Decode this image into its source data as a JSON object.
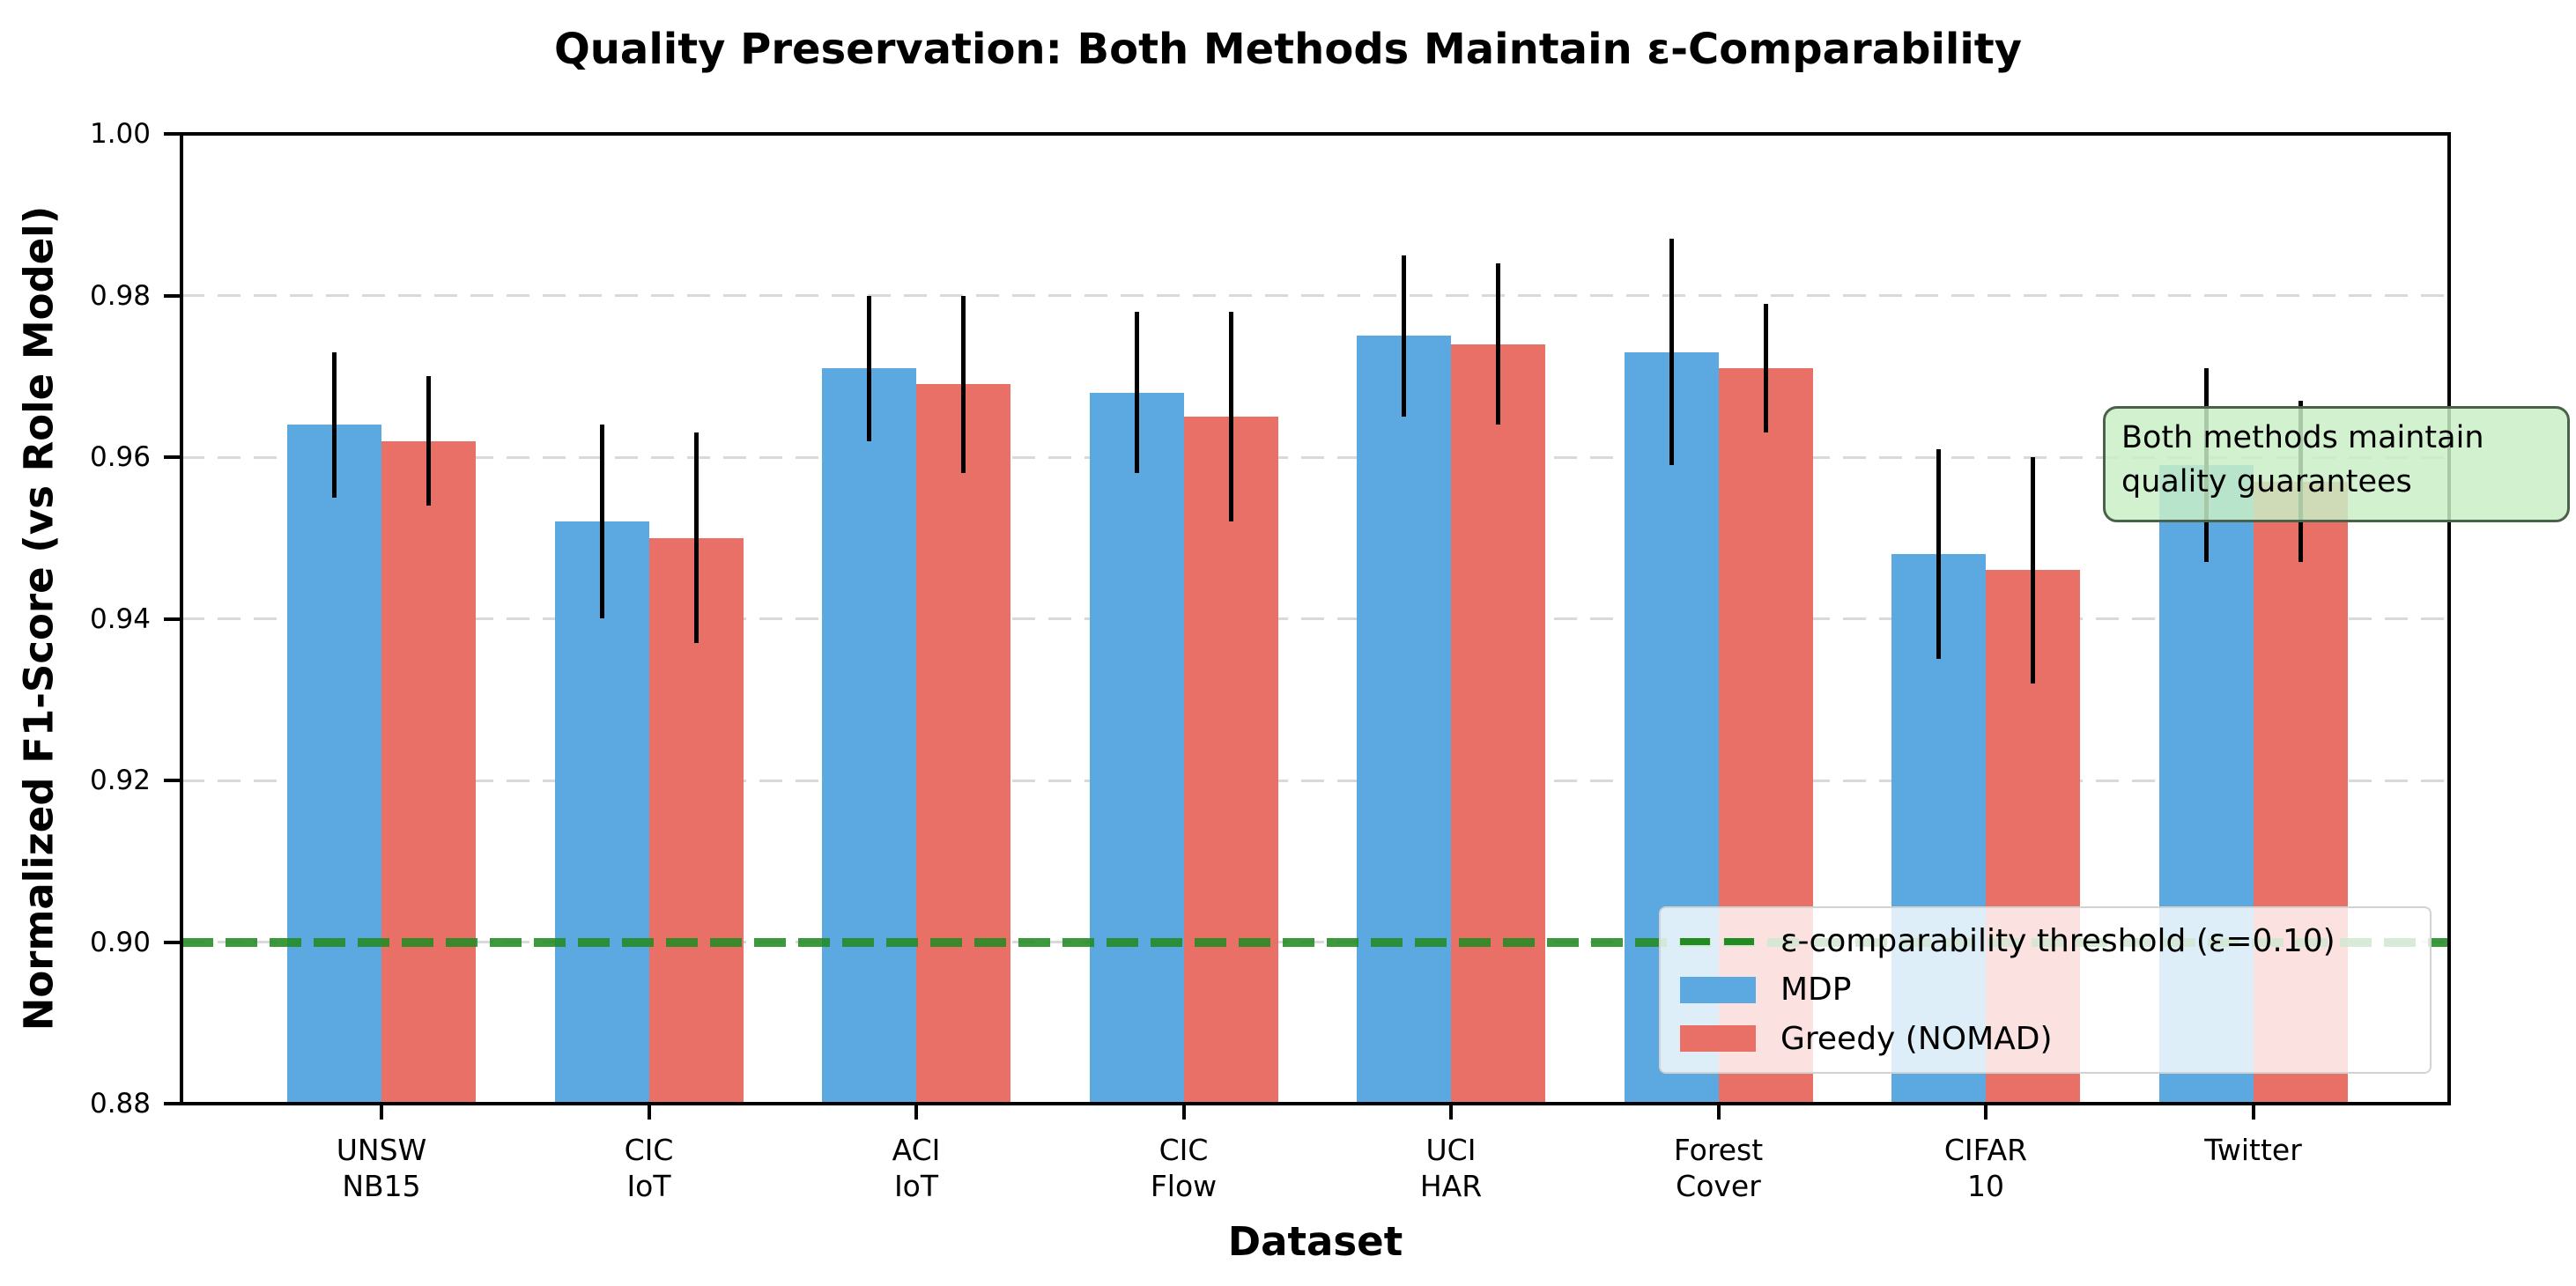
{
  "chart_data": {
    "type": "bar",
    "title": "Quality Preservation: Both Methods Maintain ε-Comparability",
    "xlabel": "Dataset",
    "ylabel": "Normalized F1-Score (vs Role Model)",
    "ylim": [
      0.88,
      1.0
    ],
    "yticks": [
      0.88,
      0.9,
      0.92,
      0.94,
      0.96,
      0.98,
      1.0
    ],
    "grid": "horizontal dashed",
    "gridline_color": "#d9d9d9",
    "categories": [
      [
        "UNSW",
        "NB15"
      ],
      [
        "CIC",
        "IoT"
      ],
      [
        "ACI",
        "IoT"
      ],
      [
        "CIC",
        "Flow"
      ],
      [
        "UCI",
        "HAR"
      ],
      [
        "Forest",
        "Cover"
      ],
      [
        "CIFAR",
        "10"
      ],
      [
        "Twitter"
      ]
    ],
    "series": [
      {
        "name": "MDP",
        "color": "#5BA9E0",
        "values": [
          0.964,
          0.952,
          0.971,
          0.968,
          0.975,
          0.973,
          0.948,
          0.959
        ],
        "errors": [
          0.009,
          0.012,
          0.009,
          0.01,
          0.01,
          0.014,
          0.013,
          0.012
        ]
      },
      {
        "name": "Greedy (NOMAD)",
        "color": "#E97067",
        "values": [
          0.962,
          0.95,
          0.969,
          0.965,
          0.974,
          0.971,
          0.946,
          0.957
        ],
        "errors": [
          0.008,
          0.013,
          0.011,
          0.013,
          0.01,
          0.008,
          0.014,
          0.01
        ]
      }
    ],
    "error_bar_color": "#000000",
    "threshold": {
      "value": 0.9,
      "label": "ε-comparability threshold (ε=0.10)",
      "color": "#228B22"
    },
    "legend": {
      "position": "lower right"
    },
    "annotation": {
      "line1": "Both methods maintain",
      "line2": "quality guarantees",
      "fill": "rgba(201,240,198,0.84)",
      "border_color": "#4a624a"
    }
  }
}
